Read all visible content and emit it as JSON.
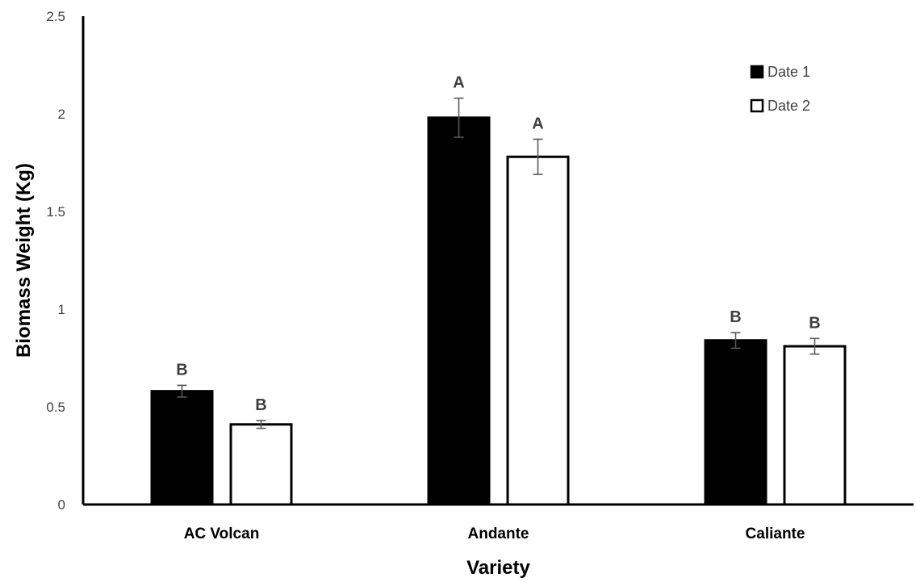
{
  "chart_data": {
    "type": "bar",
    "xlabel": "Variety",
    "ylabel": "Biomass Weight (Kg)",
    "ylim": [
      0,
      2.5
    ],
    "yticks": [
      "0",
      "0.5",
      "1",
      "1.5",
      "2",
      "2.5"
    ],
    "categories": [
      "AC Volcan",
      "Andante",
      "Caliante"
    ],
    "series": [
      {
        "name": "Date 1",
        "fill": "#000000",
        "values": [
          0.58,
          1.98,
          0.84
        ],
        "errors": [
          0.03,
          0.1,
          0.04
        ],
        "letters": [
          "B",
          "A",
          "B"
        ]
      },
      {
        "name": "Date 2",
        "fill": "#ffffff",
        "values": [
          0.41,
          1.78,
          0.81
        ],
        "errors": [
          0.02,
          0.09,
          0.04
        ],
        "letters": [
          "B",
          "A",
          "B"
        ]
      }
    ],
    "grid": false,
    "legend_position": "top-right"
  }
}
